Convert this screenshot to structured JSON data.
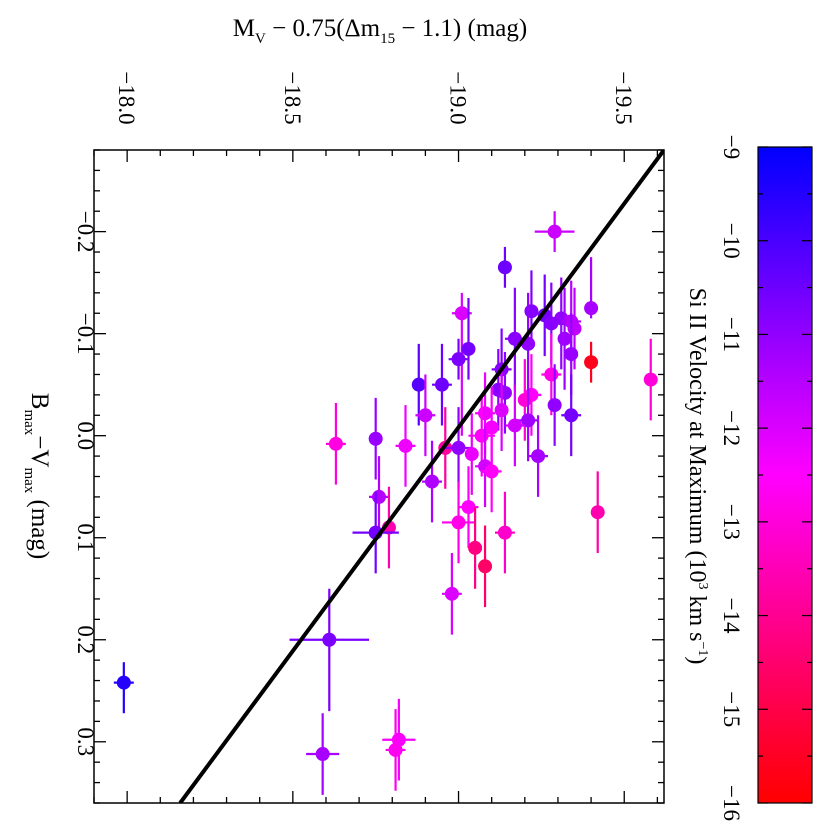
{
  "chart_data": {
    "type": "scatter",
    "orientation": "rotated-90-clockwise",
    "title": "",
    "xlabel": "B_max − V_max (mag)",
    "xlabel_main": "B",
    "xlabel_sub1": "max",
    "xlabel_mid": "−V",
    "xlabel_sub2": "max",
    "xlabel_tail": " (mag)",
    "ylabel_main": "M",
    "ylabel_sub": "V",
    "ylabel_mid": " − 0.75(Δm",
    "ylabel_sub2": "15",
    "ylabel_tail": " − 1.1) (mag)",
    "xlim": [
      -0.28,
      0.36
    ],
    "ylim": [
      -17.9,
      -19.62
    ],
    "x_ticks": [
      -0.2,
      -0.1,
      0.0,
      0.1,
      0.2,
      0.3
    ],
    "x_tick_labels": [
      "−0.2",
      "−0.1",
      "0.0",
      "0.1",
      "0.2",
      "0.3"
    ],
    "y_ticks": [
      -18.0,
      -18.5,
      -19.0,
      -19.5
    ],
    "y_tick_labels": [
      "−18.0",
      "−18.5",
      "−19.0",
      "−19.5"
    ],
    "fit_line": {
      "x": [
        -0.28,
        0.36
      ],
      "y": [
        -19.62,
        -18.16
      ]
    },
    "colorbar": {
      "label_main": "Si II Velocity at Maximum (10",
      "label_sup1": "3",
      "label_mid": " km s",
      "label_sup2": "−1",
      "label_tail": ")",
      "range": [
        -16,
        -9
      ],
      "ticks": [
        -9,
        -10,
        -11,
        -12,
        -13,
        -14,
        -15,
        -16
      ],
      "tick_labels": [
        "−9",
        "−10",
        "−11",
        "−12",
        "−13",
        "−14",
        "−15",
        "−16"
      ],
      "color_low": "#ff0000",
      "color_mid": "#ff00ff",
      "color_high": "#0000ff"
    },
    "points": [
      {
        "x": -0.2,
        "y": -19.29,
        "v": -11.8,
        "ex": 0.01,
        "ey": 0.06,
        "exl": 0.02,
        "exu": 0.02
      },
      {
        "x": -0.165,
        "y": -19.14,
        "v": -10.5,
        "ex": 0.01,
        "ey": 0.02,
        "exl": 0.02,
        "exu": 0.02
      },
      {
        "x": -0.12,
        "y": -19.01,
        "v": -12.0,
        "ex": 0.02,
        "ey": 0.03,
        "exl": 0.02,
        "exu": 0.12
      },
      {
        "x": -0.125,
        "y": -19.4,
        "v": -11.3,
        "ex": 0.02,
        "ey": 0.02,
        "exl": 0.05,
        "exu": 0.01
      },
      {
        "x": -0.122,
        "y": -19.22,
        "v": -10.8,
        "ex": 0.02,
        "ey": 0.02,
        "exl": 0.04,
        "exu": 0.03
      },
      {
        "x": -0.118,
        "y": -19.26,
        "v": -10.6,
        "ex": 0.02,
        "ey": 0.02,
        "exl": 0.04,
        "exu": 0.04
      },
      {
        "x": -0.115,
        "y": -19.31,
        "v": -11.0,
        "ex": 0.02,
        "ey": 0.03,
        "exl": 0.04,
        "exu": 0.05
      },
      {
        "x": -0.112,
        "y": -19.34,
        "v": -11.5,
        "ex": 0.02,
        "ey": 0.03,
        "exl": 0.04,
        "exu": 0.04
      },
      {
        "x": -0.11,
        "y": -19.28,
        "v": -10.9,
        "ex": 0.02,
        "ey": 0.02,
        "exl": 0.04,
        "exu": 0.04
      },
      {
        "x": -0.105,
        "y": -19.35,
        "v": -11.6,
        "ex": 0.02,
        "ey": 0.02,
        "exl": 0.04,
        "exu": 0.04
      },
      {
        "x": -0.095,
        "y": -19.32,
        "v": -11.2,
        "ex": 0.02,
        "ey": 0.02,
        "exl": 0.05,
        "exu": 0.05
      },
      {
        "x": -0.095,
        "y": -19.17,
        "v": -10.9,
        "ex": 0.02,
        "ey": 0.03,
        "exl": 0.05,
        "exu": 0.05
      },
      {
        "x": -0.09,
        "y": -19.21,
        "v": -11.0,
        "ex": 0.02,
        "ey": 0.02,
        "exl": 0.05,
        "exu": 0.05
      },
      {
        "x": -0.085,
        "y": -19.03,
        "v": -10.6,
        "ex": 0.02,
        "ey": 0.02,
        "exl": 0.05,
        "exu": 0.03
      },
      {
        "x": -0.08,
        "y": -19.34,
        "v": -11.1,
        "ex": 0.02,
        "ey": 0.02,
        "exl": 0.04,
        "exu": 0.04
      },
      {
        "x": -0.075,
        "y": -19.0,
        "v": -10.7,
        "ex": 0.02,
        "ey": 0.03,
        "exl": 0.02,
        "exu": 0.02
      },
      {
        "x": -0.072,
        "y": -19.4,
        "v": -15.6,
        "ex": 0.01,
        "ey": 0.02,
        "exl": 0.02,
        "exu": 0.02
      },
      {
        "x": -0.065,
        "y": -19.13,
        "v": -10.8,
        "ex": 0.02,
        "ey": 0.03,
        "exl": 0.04,
        "exu": 0.04
      },
      {
        "x": -0.06,
        "y": -19.28,
        "v": -12.8,
        "ex": 0.02,
        "ey": 0.03,
        "exl": 0.04,
        "exu": 0.04
      },
      {
        "x": -0.055,
        "y": -19.58,
        "v": -13.0,
        "ex": 0.02,
        "ey": 0.02,
        "exl": 0.04,
        "exu": 0.04
      },
      {
        "x": -0.05,
        "y": -18.88,
        "v": -10.2,
        "ex": 0.02,
        "ey": 0.02,
        "exl": 0.04,
        "exu": 0.04
      },
      {
        "x": -0.05,
        "y": -18.95,
        "v": -10.5,
        "ex": 0.02,
        "ey": 0.03,
        "exl": 0.04,
        "exu": 0.04
      },
      {
        "x": -0.045,
        "y": -19.12,
        "v": -10.9,
        "ex": 0.02,
        "ey": 0.02,
        "exl": 0.04,
        "exu": 0.04
      },
      {
        "x": -0.042,
        "y": -19.14,
        "v": -11.0,
        "ex": 0.02,
        "ey": 0.02,
        "exl": 0.04,
        "exu": 0.04
      },
      {
        "x": -0.04,
        "y": -19.22,
        "v": -12.5,
        "ex": 0.02,
        "ey": 0.03,
        "exl": 0.04,
        "exu": 0.04
      },
      {
        "x": -0.035,
        "y": -19.2,
        "v": -13.0,
        "ex": 0.02,
        "ey": 0.02,
        "exl": 0.04,
        "exu": 0.04
      },
      {
        "x": -0.03,
        "y": -19.29,
        "v": -11.0,
        "ex": 0.02,
        "ey": 0.02,
        "exl": 0.04,
        "exu": 0.04
      },
      {
        "x": -0.025,
        "y": -19.13,
        "v": -12.0,
        "ex": 0.02,
        "ey": 0.02,
        "exl": 0.04,
        "exu": 0.04
      },
      {
        "x": -0.022,
        "y": -19.08,
        "v": -12.3,
        "ex": 0.02,
        "ey": 0.03,
        "exl": 0.04,
        "exu": 0.04
      },
      {
        "x": -0.02,
        "y": -18.9,
        "v": -11.8,
        "ex": 0.02,
        "ey": 0.03,
        "exl": 0.04,
        "exu": 0.04
      },
      {
        "x": -0.02,
        "y": -19.34,
        "v": -10.6,
        "ex": 0.02,
        "ey": 0.03,
        "exl": 0.04,
        "exu": 0.04
      },
      {
        "x": -0.015,
        "y": -19.21,
        "v": -11.2,
        "ex": 0.02,
        "ey": 0.03,
        "exl": 0.04,
        "exu": 0.04
      },
      {
        "x": -0.01,
        "y": -19.17,
        "v": -11.9,
        "ex": 0.02,
        "ey": 0.03,
        "exl": 0.04,
        "exu": 0.04
      },
      {
        "x": -0.008,
        "y": -19.1,
        "v": -12.4,
        "ex": 0.02,
        "ey": 0.02,
        "exl": 0.04,
        "exu": 0.04
      },
      {
        "x": 0.0,
        "y": -19.07,
        "v": -12.6,
        "ex": 0.02,
        "ey": 0.04,
        "exl": 0.04,
        "exu": 0.04
      },
      {
        "x": 0.003,
        "y": -18.75,
        "v": -11.1,
        "ex": 0.02,
        "ey": 0.02,
        "exl": 0.04,
        "exu": 0.04
      },
      {
        "x": 0.008,
        "y": -18.63,
        "v": -12.9,
        "ex": 0.02,
        "ey": 0.03,
        "exl": 0.04,
        "exu": 0.04
      },
      {
        "x": 0.01,
        "y": -18.84,
        "v": -12.3,
        "ex": 0.02,
        "ey": 0.03,
        "exl": 0.04,
        "exu": 0.04
      },
      {
        "x": 0.012,
        "y": -18.96,
        "v": -13.8,
        "ex": 0.02,
        "ey": 0.02,
        "exl": 0.04,
        "exu": 0.04
      },
      {
        "x": 0.012,
        "y": -19.0,
        "v": -11.0,
        "ex": 0.02,
        "ey": 0.04,
        "exl": 0.04,
        "exu": 0.04
      },
      {
        "x": 0.018,
        "y": -19.04,
        "v": -12.2,
        "ex": 0.02,
        "ey": 0.02,
        "exl": 0.04,
        "exu": 0.04
      },
      {
        "x": 0.02,
        "y": -19.24,
        "v": -11.3,
        "ex": 0.02,
        "ey": 0.03,
        "exl": 0.04,
        "exu": 0.04
      },
      {
        "x": 0.03,
        "y": -19.08,
        "v": -11.9,
        "ex": 0.02,
        "ey": 0.03,
        "exl": 0.04,
        "exu": 0.04
      },
      {
        "x": 0.035,
        "y": -19.1,
        "v": -12.6,
        "ex": 0.02,
        "ey": 0.03,
        "exl": 0.04,
        "exu": 0.04
      },
      {
        "x": 0.045,
        "y": -18.92,
        "v": -11.4,
        "ex": 0.02,
        "ey": 0.03,
        "exl": 0.04,
        "exu": 0.04
      },
      {
        "x": 0.06,
        "y": -18.76,
        "v": -11.5,
        "ex": 0.02,
        "ey": 0.03,
        "exl": 0.04,
        "exu": 0.04
      },
      {
        "x": 0.07,
        "y": -19.03,
        "v": -12.5,
        "ex": 0.02,
        "ey": 0.03,
        "exl": 0.04,
        "exu": 0.04
      },
      {
        "x": 0.075,
        "y": -19.42,
        "v": -13.6,
        "ex": 0.02,
        "ey": 0.02,
        "exl": 0.04,
        "exu": 0.04
      },
      {
        "x": 0.085,
        "y": -19.0,
        "v": -12.8,
        "ex": 0.02,
        "ey": 0.05,
        "exl": 0.04,
        "exu": 0.04
      },
      {
        "x": 0.09,
        "y": -18.79,
        "v": -13.6,
        "ex": 0.02,
        "ey": 0.02,
        "exl": 0.04,
        "exu": 0.04
      },
      {
        "x": 0.095,
        "y": -18.75,
        "v": -10.6,
        "ex": 0.02,
        "ey": 0.07,
        "exl": 0.04,
        "exu": 0.04
      },
      {
        "x": 0.095,
        "y": -19.14,
        "v": -13.2,
        "ex": 0.02,
        "ey": 0.03,
        "exl": 0.04,
        "exu": 0.04
      },
      {
        "x": 0.11,
        "y": -19.05,
        "v": -14.2,
        "ex": 0.02,
        "ey": 0.02,
        "exl": 0.04,
        "exu": 0.04
      },
      {
        "x": 0.128,
        "y": -19.08,
        "v": -14.6,
        "ex": 0.02,
        "ey": 0.02,
        "exl": 0.04,
        "exu": 0.04
      },
      {
        "x": 0.155,
        "y": -18.98,
        "v": -12.0,
        "ex": 0.02,
        "ey": 0.03,
        "exl": 0.04,
        "exu": 0.04
      },
      {
        "x": 0.2,
        "y": -18.61,
        "v": -10.7,
        "ex": 0.02,
        "ey": 0.12,
        "exl": 0.05,
        "exu": 0.07
      },
      {
        "x": 0.242,
        "y": -17.99,
        "v": -9.5,
        "ex": 0.01,
        "ey": 0.03,
        "exl": 0.02,
        "exu": 0.03
      },
      {
        "x": 0.298,
        "y": -18.82,
        "v": -12.4,
        "ex": 0.04,
        "ey": 0.05,
        "exl": 0.04,
        "exu": 0.04
      },
      {
        "x": 0.308,
        "y": -18.81,
        "v": -12.7,
        "ex": 0.02,
        "ey": 0.03,
        "exl": 0.04,
        "exu": 0.04
      },
      {
        "x": 0.312,
        "y": -18.59,
        "v": -11.3,
        "ex": 0.02,
        "ey": 0.05,
        "exl": 0.04,
        "exu": 0.04
      }
    ]
  }
}
